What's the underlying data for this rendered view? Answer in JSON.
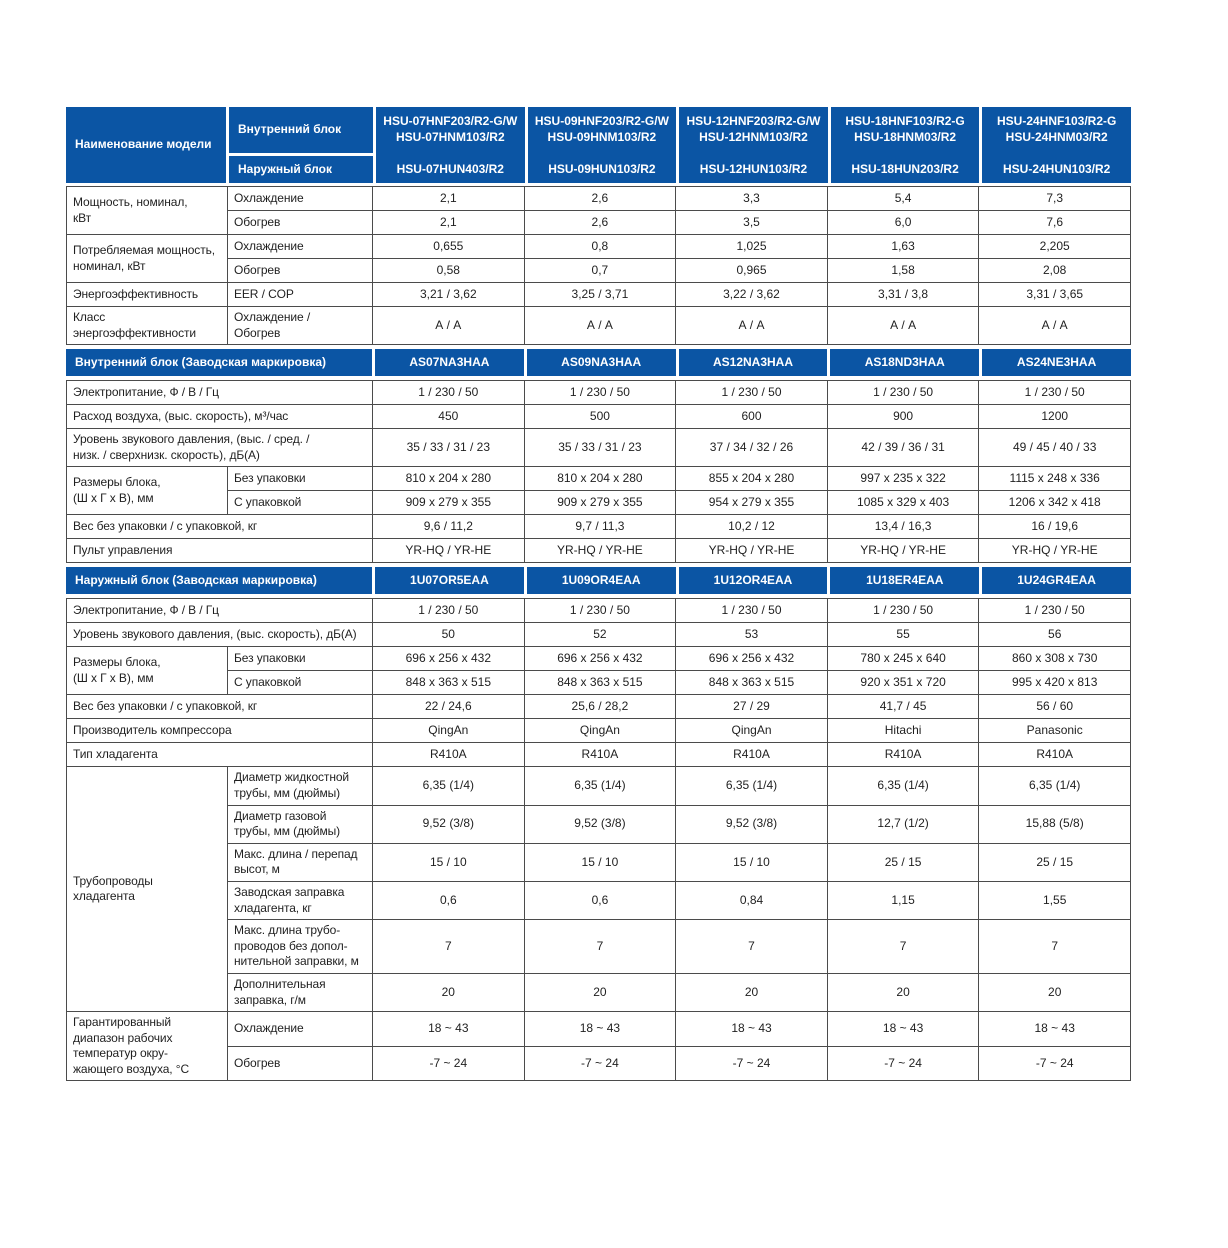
{
  "colors": {
    "brand_blue": "#0b55a4",
    "border": "#4b4b4b",
    "text": "#1f1f1f",
    "header_text": "#ffffff"
  },
  "header": {
    "model_name_label": "Наименование модели",
    "indoor_row_label": "Внутренний блок",
    "outdoor_row_label": "Наружный блок",
    "models": [
      {
        "indoor": "HSU-07HNF203/R2-G/W\nHSU-07HNM103/R2",
        "outdoor": "HSU-07HUN403/R2"
      },
      {
        "indoor": "HSU-09HNF203/R2-G/W\nHSU-09HNM103/R2",
        "outdoor": "HSU-09HUN103/R2"
      },
      {
        "indoor": "HSU-12HNF203/R2-G/W\nHSU-12HNM103/R2",
        "outdoor": "HSU-12HUN103/R2"
      },
      {
        "indoor": "HSU-18HNF103/R2-G\nHSU-18HNM03/R2",
        "outdoor": "HSU-18HUN203/R2"
      },
      {
        "indoor": "HSU-24HNF103/R2-G\nHSU-24HNM03/R2",
        "outdoor": "HSU-24HUN103/R2"
      }
    ]
  },
  "sections": [
    {
      "type": "rows",
      "rows": [
        {
          "group": "Мощность, номинал,\nкВт",
          "span": 2,
          "sub": "Охлаждение",
          "values": [
            "2,1",
            "2,6",
            "3,3",
            "5,4",
            "7,3"
          ]
        },
        {
          "sub": "Обогрев",
          "values": [
            "2,1",
            "2,6",
            "3,5",
            "6,0",
            "7,6"
          ]
        },
        {
          "group": "Потребляемая мощность,\nноминал, кВт",
          "span": 2,
          "sub": "Охлаждение",
          "values": [
            "0,655",
            "0,8",
            "1,025",
            "1,63",
            "2,205"
          ]
        },
        {
          "sub": "Обогрев",
          "values": [
            "0,58",
            "0,7",
            "0,965",
            "1,58",
            "2,08"
          ]
        },
        {
          "group": "Энергоэффективность",
          "span": 1,
          "sub": "EER / COP",
          "values": [
            "3,21 / 3,62",
            "3,25 / 3,71",
            "3,22 / 3,62",
            "3,31 / 3,8",
            "3,31 / 3,65"
          ]
        },
        {
          "group": "Класс\nэнергоэффективности",
          "span": 1,
          "sub": "Охлаждение /\nОбогрев",
          "values": [
            "А / А",
            "А / А",
            "А / А",
            "А / А",
            "А / А"
          ]
        }
      ]
    },
    {
      "type": "band",
      "label": "Внутренний блок (Заводская маркировка)",
      "values": [
        "AS07NA3HAA",
        "AS09NA3HAA",
        "AS12NA3HAA",
        "AS18ND3HAA",
        "AS24NE3HAA"
      ]
    },
    {
      "type": "rows",
      "rows": [
        {
          "wide": "Электропитание, Ф / В / Гц",
          "values": [
            "1 / 230 / 50",
            "1 / 230 / 50",
            "1 / 230 / 50",
            "1 / 230 / 50",
            "1 / 230 / 50"
          ]
        },
        {
          "wide": "Расход воздуха, (выс. скорость), м³/час",
          "values": [
            "450",
            "500",
            "600",
            "900",
            "1200"
          ]
        },
        {
          "wide": "Уровень звукового давления, (выс.  / сред. /\nнизк. / сверхнизк. скорость), дБ(А)",
          "values": [
            "35 / 33 / 31 / 23",
            "35 / 33 / 31 / 23",
            "37 / 34 / 32 / 26",
            "42 / 39 / 36 / 31",
            "49 / 45 / 40 / 33"
          ]
        },
        {
          "group": "Размеры блока,\n(Ш х Г х В), мм",
          "span": 2,
          "sub": "Без упаковки",
          "values": [
            "810 x 204 x 280",
            "810 x 204 x 280",
            "855 x 204 x 280",
            "997 x 235 x 322",
            "1115 x 248 x 336"
          ]
        },
        {
          "sub": "С упаковкой",
          "values": [
            "909 x 279 x 355",
            "909 x 279 x 355",
            "954 x 279 x 355",
            "1085 x 329 x 403",
            "1206 x 342 x 418"
          ]
        },
        {
          "wide": "Вес без упаковки / с упаковкой, кг",
          "values": [
            "9,6 / 11,2",
            "9,7 / 11,3",
            "10,2 / 12",
            "13,4 / 16,3",
            "16 / 19,6"
          ]
        },
        {
          "wide": "Пульт управления",
          "values": [
            "YR-HQ / YR-HE",
            "YR-HQ / YR-HE",
            "YR-HQ / YR-HE",
            "YR-HQ / YR-HE",
            "YR-HQ / YR-HE"
          ]
        }
      ]
    },
    {
      "type": "band",
      "label": "Наружный блок (Заводская маркировка)",
      "values": [
        "1U07OR5EAA",
        "1U09OR4EAA",
        "1U12OR4EAA",
        "1U18ER4EAA",
        "1U24GR4EAA"
      ]
    },
    {
      "type": "rows",
      "rows": [
        {
          "wide": "Электропитание, Ф / В / Гц",
          "values": [
            "1 / 230 / 50",
            "1 / 230 / 50",
            "1 / 230 / 50",
            "1 / 230 / 50",
            "1 / 230 / 50"
          ]
        },
        {
          "wide": "Уровень звукового давления, (выс. скорость), дБ(А)",
          "values": [
            "50",
            "52",
            "53",
            "55",
            "56"
          ]
        },
        {
          "group": "Размеры блока,\n(Ш х Г х В), мм",
          "span": 2,
          "sub": "Без упаковки",
          "values": [
            "696 x 256 x 432",
            "696 x 256 x 432",
            "696 x 256 x 432",
            "780 x 245 x 640",
            "860 x 308 x 730"
          ]
        },
        {
          "sub": "С упаковкой",
          "values": [
            "848 x 363 x 515",
            "848 x 363 x 515",
            "848 x 363 x 515",
            "920 x 351 x 720",
            "995 x 420 x 813"
          ]
        },
        {
          "wide": "Вес без упаковки / с упаковкой, кг",
          "values": [
            "22 / 24,6",
            "25,6 / 28,2",
            "27 / 29",
            "41,7 / 45",
            "56 / 60"
          ]
        },
        {
          "wide": "Производитель компрессора",
          "values": [
            "QingAn",
            "QingAn",
            "QingAn",
            "Hitachi",
            "Panasonic"
          ]
        },
        {
          "wide": "Тип хладагента",
          "values": [
            "R410A",
            "R410A",
            "R410A",
            "R410A",
            "R410A"
          ]
        },
        {
          "group": "Трубопроводы\nхладагента",
          "span": 6,
          "sub": "Диаметр жидкостной\nтрубы, мм (дюймы)",
          "values": [
            "6,35 (1/4)",
            "6,35 (1/4)",
            "6,35 (1/4)",
            "6,35 (1/4)",
            "6,35 (1/4)"
          ]
        },
        {
          "sub": "Диаметр газовой\nтрубы, мм (дюймы)",
          "values": [
            "9,52 (3/8)",
            "9,52 (3/8)",
            "9,52 (3/8)",
            "12,7 (1/2)",
            "15,88 (5/8)"
          ]
        },
        {
          "sub": "Макс. длина / перепад\nвысот, м",
          "values": [
            "15 / 10",
            "15 / 10",
            "15 / 10",
            "25 / 15",
            "25 / 15"
          ]
        },
        {
          "sub": "Заводская заправка\nхладагента, кг",
          "values": [
            "0,6",
            "0,6",
            "0,84",
            "1,15",
            "1,55"
          ]
        },
        {
          "sub": "Макс. длина трубо-\nпроводов без допол-\nнительной заправки, м",
          "values": [
            "7",
            "7",
            "7",
            "7",
            "7"
          ]
        },
        {
          "sub": "Дополнительная\nзаправка, г/м",
          "values": [
            "20",
            "20",
            "20",
            "20",
            "20"
          ]
        },
        {
          "group": "Гарантированный\nдиапазон рабочих\nтемператур окру-\nжающего воздуха, °С",
          "span": 2,
          "sub": "Охлаждение",
          "values": [
            "18 ~ 43",
            "18 ~ 43",
            "18 ~ 43",
            "18 ~ 43",
            "18 ~ 43"
          ]
        },
        {
          "sub": "Обогрев",
          "values": [
            "-7 ~ 24",
            "-7 ~ 24",
            "-7 ~ 24",
            "-7 ~ 24",
            "-7 ~ 24"
          ]
        }
      ]
    }
  ]
}
